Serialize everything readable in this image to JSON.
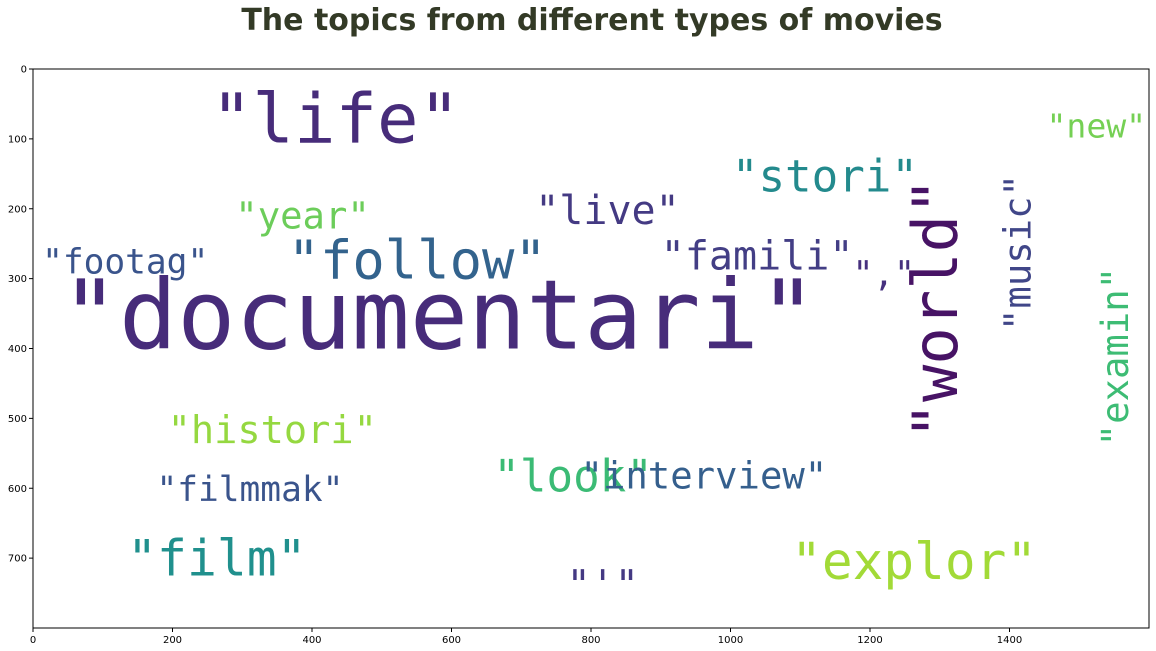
{
  "chart_data": {
    "type": "wordcloud",
    "title": "The topics from different types of movies",
    "title_color": "#333a26",
    "xlim": [
      0,
      1600
    ],
    "ylim": [
      800,
      0
    ],
    "xticks": [
      0,
      200,
      400,
      600,
      800,
      1000,
      1200,
      1400
    ],
    "yticks": [
      0,
      100,
      200,
      300,
      400,
      500,
      600,
      700
    ],
    "words": [
      {
        "text": "\"documentari\"",
        "x": 40,
        "y": 400,
        "size": 140,
        "color": "#472c7a",
        "rotate": 0
      },
      {
        "text": "\"life\"",
        "x": 255,
        "y": 105,
        "size": 100,
        "color": "#472c7a",
        "rotate": 0
      },
      {
        "text": "\"follow\"",
        "x": 365,
        "y": 300,
        "size": 78,
        "color": "#33638d",
        "rotate": 0
      },
      {
        "text": "\"world\"",
        "x": 1325,
        "y": 530,
        "size": 90,
        "color": "#471365",
        "rotate": 270
      },
      {
        "text": "\"stori\"",
        "x": 1002,
        "y": 175,
        "size": 64,
        "color": "#238a8d",
        "rotate": 0
      },
      {
        "text": "\"explor\"",
        "x": 1087,
        "y": 730,
        "size": 74,
        "color": "#a2da37",
        "rotate": 0
      },
      {
        "text": "\"film\"",
        "x": 135,
        "y": 725,
        "size": 72,
        "color": "#20908d",
        "rotate": 0
      },
      {
        "text": "\"look\"",
        "x": 660,
        "y": 605,
        "size": 64,
        "color": "#3bbb75",
        "rotate": 0
      },
      {
        "text": "\"histori\"",
        "x": 193,
        "y": 535,
        "size": 56,
        "color": "#95d840",
        "rotate": 0
      },
      {
        "text": "\"interview\"",
        "x": 785,
        "y": 600,
        "size": 54,
        "color": "#355f8d",
        "rotate": 0
      },
      {
        "text": "\"live\"",
        "x": 720,
        "y": 222,
        "size": 58,
        "color": "#443a83",
        "rotate": 0
      },
      {
        "text": "\"famili\"",
        "x": 900,
        "y": 287,
        "size": 58,
        "color": "#433e85",
        "rotate": 0
      },
      {
        "text": "\"year\"",
        "x": 290,
        "y": 228,
        "size": 54,
        "color": "#6ccd5a",
        "rotate": 0
      },
      {
        "text": "\"footag\"",
        "x": 13,
        "y": 293,
        "size": 50,
        "color": "#3a548c",
        "rotate": 0
      },
      {
        "text": "\"filmmak\"",
        "x": 177,
        "y": 618,
        "size": 50,
        "color": "#3a548c",
        "rotate": 0
      },
      {
        "text": "\"music\"",
        "x": 1430,
        "y": 375,
        "size": 54,
        "color": "#404688",
        "rotate": 270
      },
      {
        "text": "\"examin\"",
        "x": 1570,
        "y": 540,
        "size": 54,
        "color": "#3dbc74",
        "rotate": 270
      },
      {
        "text": "\"new\"",
        "x": 1453,
        "y": 98,
        "size": 48,
        "color": "#75d054",
        "rotate": 0
      },
      {
        "text": "\",\"",
        "x": 1175,
        "y": 310,
        "size": 50,
        "color": "#46307e",
        "rotate": 0
      },
      {
        "text": "\"'\"",
        "x": 765,
        "y": 758,
        "size": 58,
        "color": "#443983",
        "rotate": 0
      }
    ]
  }
}
